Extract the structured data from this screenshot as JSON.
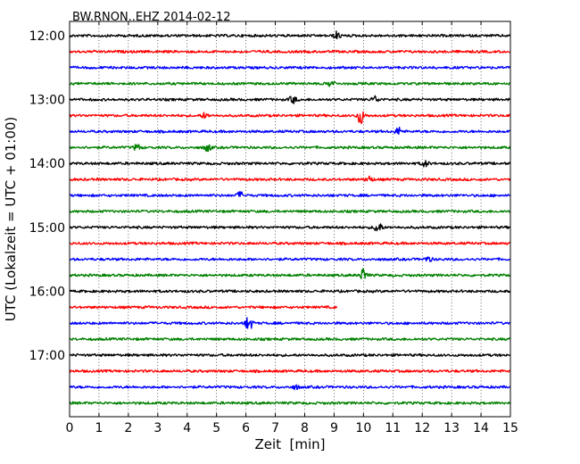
{
  "chart_data": {
    "type": "line",
    "title": "BW.RNON..EHZ 2014-02-12",
    "xlabel": "Zeit  [min]",
    "ylabel": "UTC (Lokalzeit = UTC + 01:00)",
    "xlim": [
      0,
      15
    ],
    "x_ticks": [
      "0",
      "1",
      "2",
      "3",
      "4",
      "5",
      "6",
      "7",
      "8",
      "9",
      "10",
      "11",
      "12",
      "13",
      "14",
      "15"
    ],
    "y_tick_labels": [
      "12:00",
      "13:00",
      "14:00",
      "15:00",
      "16:00",
      "17:00"
    ],
    "trace_start_times": [
      "12:00",
      "12:15",
      "12:30",
      "12:45",
      "13:00",
      "13:15",
      "13:30",
      "13:45",
      "14:00",
      "14:15",
      "14:30",
      "14:45",
      "15:00",
      "15:15",
      "15:30",
      "15:45",
      "16:00",
      "16:15",
      "16:30",
      "16:45",
      "17:00",
      "17:15",
      "17:30",
      "17:45"
    ],
    "trace_colors": [
      "#000000",
      "#ff0000",
      "#0000ff",
      "#008000"
    ],
    "trace_end_minute": {
      "16:15": 9.1
    },
    "events": [
      {
        "trace": "12:00",
        "minute": 9.1,
        "amplitude": 0.6
      },
      {
        "trace": "12:45",
        "minute": 8.9,
        "amplitude": 0.5
      },
      {
        "trace": "13:00",
        "minute": 7.6,
        "amplitude": 0.6
      },
      {
        "trace": "13:00",
        "minute": 10.4,
        "amplitude": 0.5
      },
      {
        "trace": "13:15",
        "minute": 4.6,
        "amplitude": 0.4
      },
      {
        "trace": "13:15",
        "minute": 9.9,
        "amplitude": 1.3
      },
      {
        "trace": "13:30",
        "minute": 11.2,
        "amplitude": 0.6
      },
      {
        "trace": "13:45",
        "minute": 2.3,
        "amplitude": 0.5
      },
      {
        "trace": "13:45",
        "minute": 4.7,
        "amplitude": 0.6
      },
      {
        "trace": "14:00",
        "minute": 12.1,
        "amplitude": 0.5
      },
      {
        "trace": "14:15",
        "minute": 10.2,
        "amplitude": 0.5
      },
      {
        "trace": "14:30",
        "minute": 5.8,
        "amplitude": 0.5
      },
      {
        "trace": "15:00",
        "minute": 10.5,
        "amplitude": 1.0
      },
      {
        "trace": "15:30",
        "minute": 12.2,
        "amplitude": 0.4
      },
      {
        "trace": "15:45",
        "minute": 10.0,
        "amplitude": 1.0
      },
      {
        "trace": "16:30",
        "minute": 6.1,
        "amplitude": 1.2
      },
      {
        "trace": "17:30",
        "minute": 7.7,
        "amplitude": 0.3
      }
    ],
    "grid": "vertical dotted"
  }
}
